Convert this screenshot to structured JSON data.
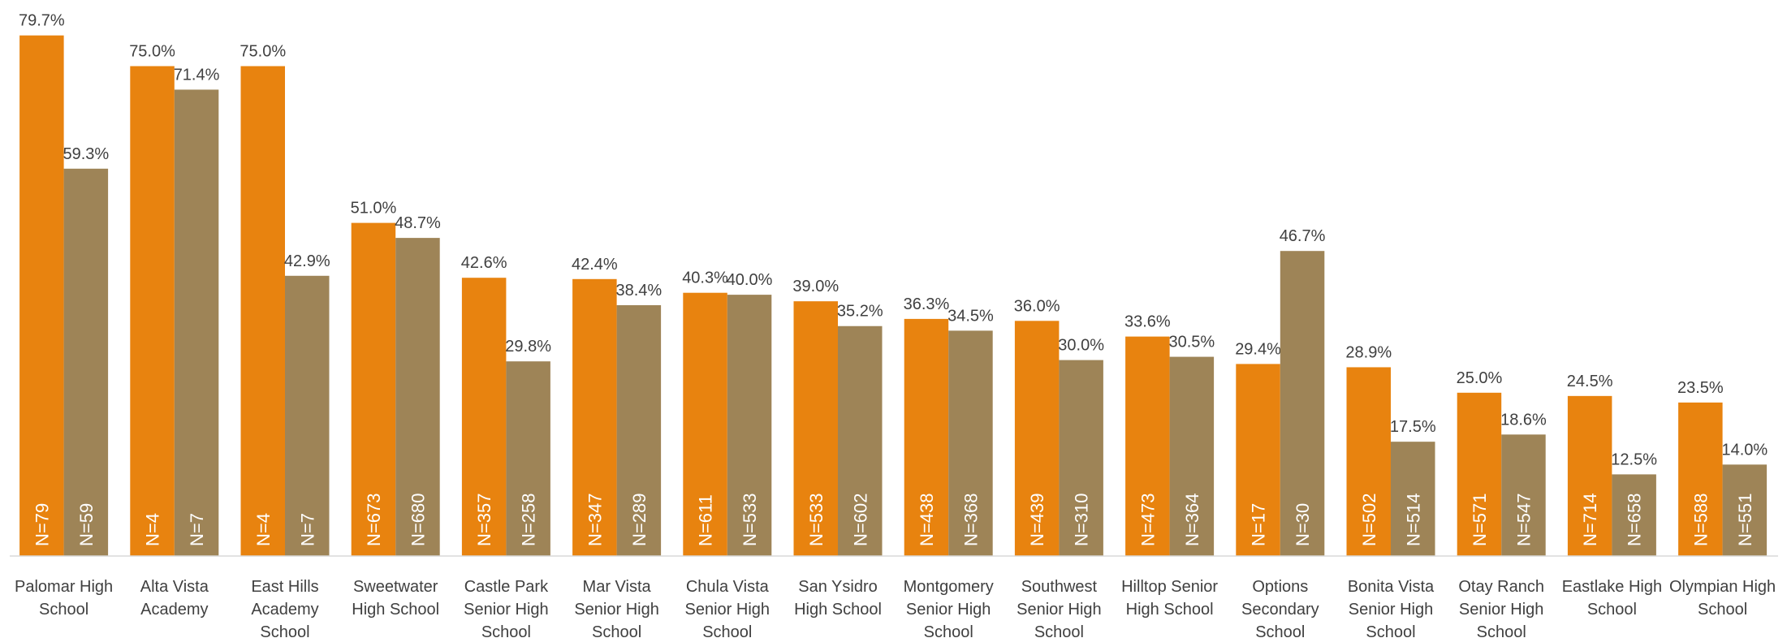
{
  "chart_data": {
    "type": "bar",
    "categories": [
      "Palomar High School",
      "Alta Vista Academy",
      "East Hills Academy School",
      "Sweetwater High School",
      "Castle Park Senior High School",
      "Mar Vista Senior High School",
      "Chula Vista Senior High School",
      "San Ysidro High School",
      "Montgomery Senior High School",
      "Southwest Senior High School",
      "Hilltop Senior High School",
      "Options Secondary School",
      "Bonita Vista Senior High School",
      "Otay Ranch Senior High School",
      "Eastlake High School",
      "Olympian High School"
    ],
    "ylim": [
      0,
      85
    ],
    "series": [
      {
        "color": "#e8830f",
        "values": [
          79.7,
          75.0,
          75.0,
          51.0,
          42.6,
          42.4,
          40.3,
          39.0,
          36.3,
          36.0,
          33.6,
          29.4,
          28.9,
          25.0,
          24.5,
          23.5
        ],
        "value_labels": [
          "79.7%",
          "75.0%",
          "75.0%",
          "51.0%",
          "42.6%",
          "42.4%",
          "40.3%",
          "39.0%",
          "36.3%",
          "36.0%",
          "33.6%",
          "29.4%",
          "28.9%",
          "25.0%",
          "24.5%",
          "23.5%"
        ],
        "n_labels": [
          "N=79",
          "N=4",
          "N=4",
          "N=673",
          "N=357",
          "N=347",
          "N=611",
          "N=533",
          "N=438",
          "N=439",
          "N=473",
          "N=17",
          "N=502",
          "N=571",
          "N=714",
          "N=588"
        ]
      },
      {
        "color": "#9e8457",
        "values": [
          59.3,
          71.4,
          42.9,
          48.7,
          29.8,
          38.4,
          40.0,
          35.2,
          34.5,
          30.0,
          30.5,
          46.7,
          17.5,
          18.6,
          12.5,
          14.0
        ],
        "value_labels": [
          "59.3%",
          "71.4%",
          "42.9%",
          "48.7%",
          "29.8%",
          "38.4%",
          "40.0%",
          "35.2%",
          "34.5%",
          "30.0%",
          "30.5%",
          "46.7%",
          "17.5%",
          "18.6%",
          "12.5%",
          "14.0%"
        ],
        "n_labels": [
          "N=59",
          "N=7",
          "N=7",
          "N=680",
          "N=258",
          "N=289",
          "N=533",
          "N=602",
          "N=368",
          "N=310",
          "N=364",
          "N=30",
          "N=514",
          "N=547",
          "N=658",
          "N=551"
        ]
      }
    ]
  }
}
